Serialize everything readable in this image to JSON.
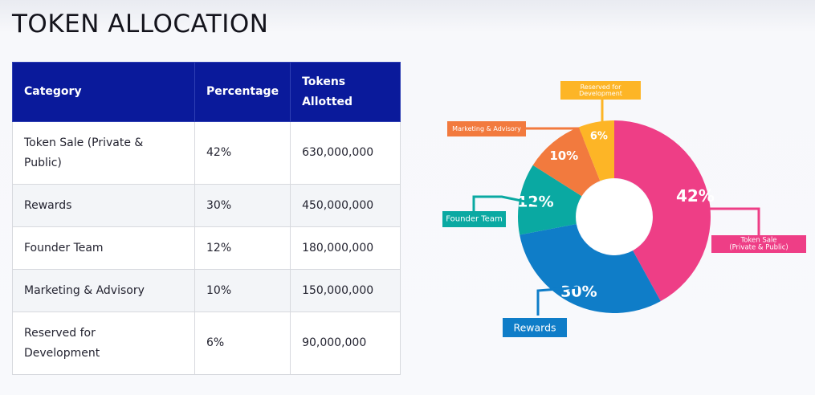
{
  "page": {
    "title": "TOKEN ALLOCATION"
  },
  "table": {
    "headers": {
      "category": "Category",
      "percentage": "Percentage",
      "tokens_line1": "Tokens",
      "tokens_line2": "Allotted"
    },
    "rows": [
      {
        "category_line1": "Token Sale (Private &",
        "category_line2": "Public)",
        "percentage": "42%",
        "tokens": "630,000,000"
      },
      {
        "category_line1": "Rewards",
        "category_line2": "",
        "percentage": "30%",
        "tokens": "450,000,000"
      },
      {
        "category_line1": "Founder Team",
        "category_line2": "",
        "percentage": "12%",
        "tokens": "180,000,000"
      },
      {
        "category_line1": "Marketing & Advisory",
        "category_line2": "",
        "percentage": "10%",
        "tokens": "150,000,000"
      },
      {
        "category_line1": "Reserved for",
        "category_line2": "Development",
        "percentage": "6%",
        "tokens": "90,000,000"
      }
    ]
  },
  "chart_data": {
    "type": "pie",
    "variant": "donut",
    "start": "top, clockwise",
    "slices": [
      {
        "label_lines": [
          "Token Sale",
          "(Private & Public)"
        ],
        "value": 42,
        "display": "42%",
        "color": "#ee3e86"
      },
      {
        "label_lines": [
          "Rewards"
        ],
        "value": 30,
        "display": "30%",
        "color": "#0f7dc8"
      },
      {
        "label_lines": [
          "Founder Team"
        ],
        "value": 12,
        "display": "12%",
        "color": "#0aa9a2"
      },
      {
        "label_lines": [
          "Marketing & Advisory"
        ],
        "value": 10,
        "display": "10%",
        "color": "#f27a3e"
      },
      {
        "label_lines": [
          "Reserved for",
          "Development"
        ],
        "value": 6,
        "display": "6%",
        "color": "#fdb526"
      }
    ]
  }
}
